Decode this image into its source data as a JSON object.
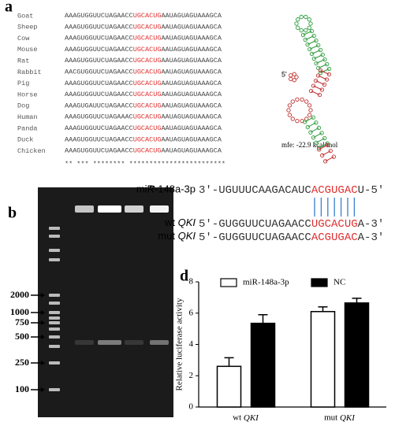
{
  "panel_a": {
    "label": "a",
    "rows": [
      {
        "species": "Goat",
        "seq_start": "AAAGUGGUUCUAGAACC",
        "seq_motif": "UGCACUG",
        "seq_end": "AAUAGUAGUAAAGCA"
      },
      {
        "species": "Sheep",
        "seq_start": "AAAGUGGUUCUAGAACC",
        "seq_motif": "UGCACUG",
        "seq_end": "AAUAGUAGUAAAGCA"
      },
      {
        "species": "Cow",
        "seq_start": "AAAGUGGUUCUAGAACC",
        "seq_motif": "UGCACUG",
        "seq_end": "AAUAGUAGUAAAGCA"
      },
      {
        "species": "Mouse",
        "seq_start": "AAAGUGGUUCUAGAACC",
        "seq_motif": "UGCACUG",
        "seq_end": "AAUAGUAGUAAAGCA"
      },
      {
        "species": "Rat",
        "seq_start": "AAAGUGGUUCUAGAACC",
        "seq_motif": "UGCACUG",
        "seq_end": "AAUAGUAGUAAAGCA"
      },
      {
        "species": "Rabbit",
        "seq_start": "AACGUGGUUCUAGAACC",
        "seq_motif": "UGCACUG",
        "seq_end": "AAUAGUAGUAAAGCA"
      },
      {
        "species": "Pig",
        "seq_start": "AAAGUGGUUCUAGAACC",
        "seq_motif": "UGCACUG",
        "seq_end": "AAUAGUAGUAAAGCA"
      },
      {
        "species": "Horse",
        "seq_start": "AAAGUGGUUCUAGAACC",
        "seq_motif": "UGCACUG",
        "seq_end": "AAUAGUAGUAAAGCA"
      },
      {
        "species": "Dog",
        "seq_start": "AAAGUGAUUCUAGAACC",
        "seq_motif": "UGCACUG",
        "seq_end": "AAUAGUAGUAAAGCA"
      },
      {
        "species": "Human",
        "seq_start": "AAAGUGGUUCUAGAAAC",
        "seq_motif": "UGCACUG",
        "seq_end": "AAUAGUAGUAAAGCA"
      },
      {
        "species": "Panda",
        "seq_start": "AAAGUGGUUCUAGAACC",
        "seq_motif": "UGCACUG",
        "seq_end": "AAUAGUAGUAAAGCA"
      },
      {
        "species": "Duck",
        "seq_start": "AAAGUGGUUCUAGAACC",
        "seq_motif": "UGCACUG",
        "seq_end": "AAUAGUAGUAAAGCA"
      },
      {
        "species": "Chicken",
        "seq_start": "AAAGUGGUUCUAGAACC",
        "seq_motif": "UGCACUG",
        "seq_end": "AAUAGUAGUAAAGCA"
      }
    ],
    "conservation": "** ***  ********  ************************",
    "structure_end": "5'",
    "mfe": "mfe: -22.9 kcal/mol"
  },
  "panel_b": {
    "label": "b",
    "markers": [
      "2000",
      "1000",
      "750",
      "500",
      "250",
      "100"
    ]
  },
  "panel_c": {
    "label": "c",
    "mirna": {
      "name": "miR-148a-3p",
      "left": "3'-UGUUUCAAGACAUC",
      "motif": "ACGUGAC",
      "right": "U-5'"
    },
    "wt": {
      "prefix": "wt",
      "gene": "QKI",
      "left": "5'-GUGGUUCUAGAACC",
      "motif": "UGCACUG",
      "right": "A-3'"
    },
    "mut": {
      "prefix": "mut",
      "gene": "QKI",
      "left": "5'-GUGGUUCUAGAACC",
      "motif": "ACGUGAC",
      "right": "A-3'"
    }
  },
  "chart_data": {
    "type": "bar",
    "label": "d",
    "ylabel": "Relative luciferase activity",
    "categories": [
      "wt QKI",
      "mut QKI"
    ],
    "series": [
      {
        "name": "miR-148a-3p",
        "color": "#ffffff",
        "values": [
          2.6,
          6.1
        ],
        "errors": [
          0.55,
          0.3
        ]
      },
      {
        "name": "NC",
        "color": "#000000",
        "values": [
          5.35,
          6.65
        ],
        "errors": [
          0.55,
          0.3
        ]
      }
    ],
    "ylim": [
      0,
      8
    ],
    "yticks": [
      0,
      2,
      4,
      6,
      8
    ]
  }
}
